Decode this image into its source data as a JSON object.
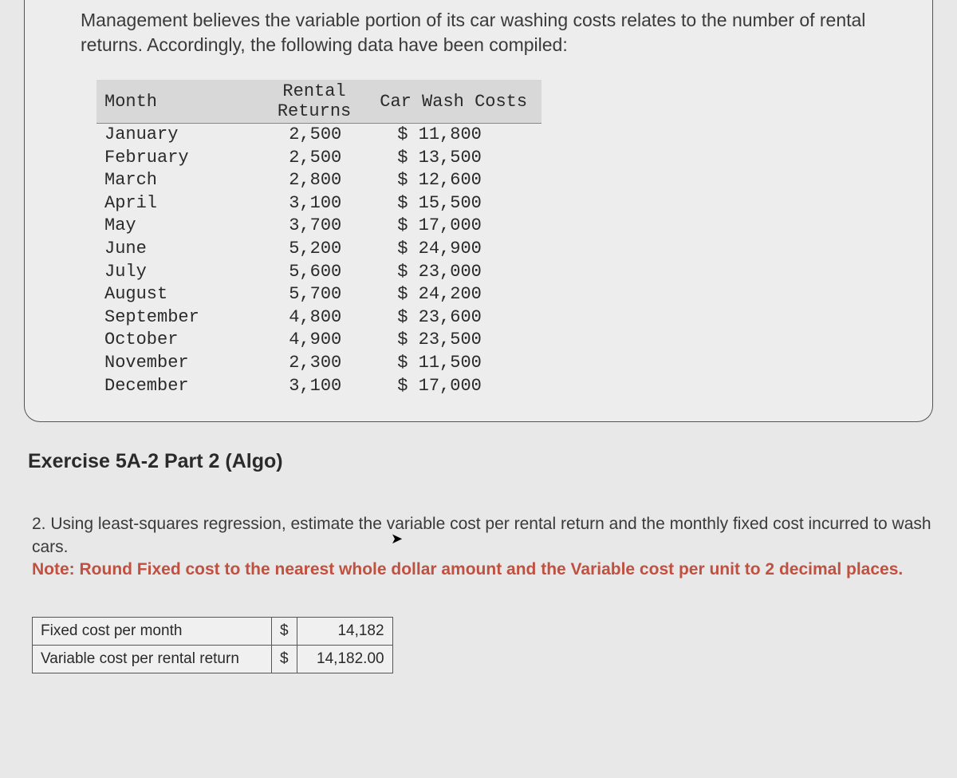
{
  "intro": "Management believes the variable portion of its car washing costs relates to the number of rental returns. Accordingly, the following data have been compiled:",
  "table": {
    "headers": {
      "month": "Month",
      "returns": "Rental\nReturns",
      "costs": "Car Wash Costs"
    },
    "rows": [
      {
        "month": "January",
        "returns": "2,500",
        "cost": "$ 11,800"
      },
      {
        "month": "February",
        "returns": "2,500",
        "cost": "$ 13,500"
      },
      {
        "month": "March",
        "returns": "2,800",
        "cost": "$ 12,600"
      },
      {
        "month": "April",
        "returns": "3,100",
        "cost": "$ 15,500"
      },
      {
        "month": "May",
        "returns": "3,700",
        "cost": "$ 17,000"
      },
      {
        "month": "June",
        "returns": "5,200",
        "cost": "$ 24,900"
      },
      {
        "month": "July",
        "returns": "5,600",
        "cost": "$ 23,000"
      },
      {
        "month": "August",
        "returns": "5,700",
        "cost": "$ 24,200"
      },
      {
        "month": "September",
        "returns": "4,800",
        "cost": "$ 23,600"
      },
      {
        "month": "October",
        "returns": "4,900",
        "cost": "$ 23,500"
      },
      {
        "month": "November",
        "returns": "2,300",
        "cost": "$ 11,500"
      },
      {
        "month": "December",
        "returns": "3,100",
        "cost": "$ 17,000"
      }
    ]
  },
  "exercise_title": "Exercise 5A-2 Part 2 (Algo)",
  "question_text": "2. Using least-squares regression, estimate the variable cost per rental return and the monthly fixed cost incurred to wash cars.",
  "note_text": "Note: Round Fixed cost to the nearest whole dollar amount and the Variable cost per unit to 2 decimal places.",
  "answers": {
    "fixed_label": "Fixed cost per month",
    "variable_label": "Variable cost per rental return",
    "currency": "$",
    "fixed_value": "14,182",
    "variable_value": "14,182.00"
  },
  "colors": {
    "page_bg": "#e8e8e8",
    "box_bg": "#ededed",
    "text": "#3a3a3a",
    "note": "#c05040",
    "border": "#555"
  }
}
